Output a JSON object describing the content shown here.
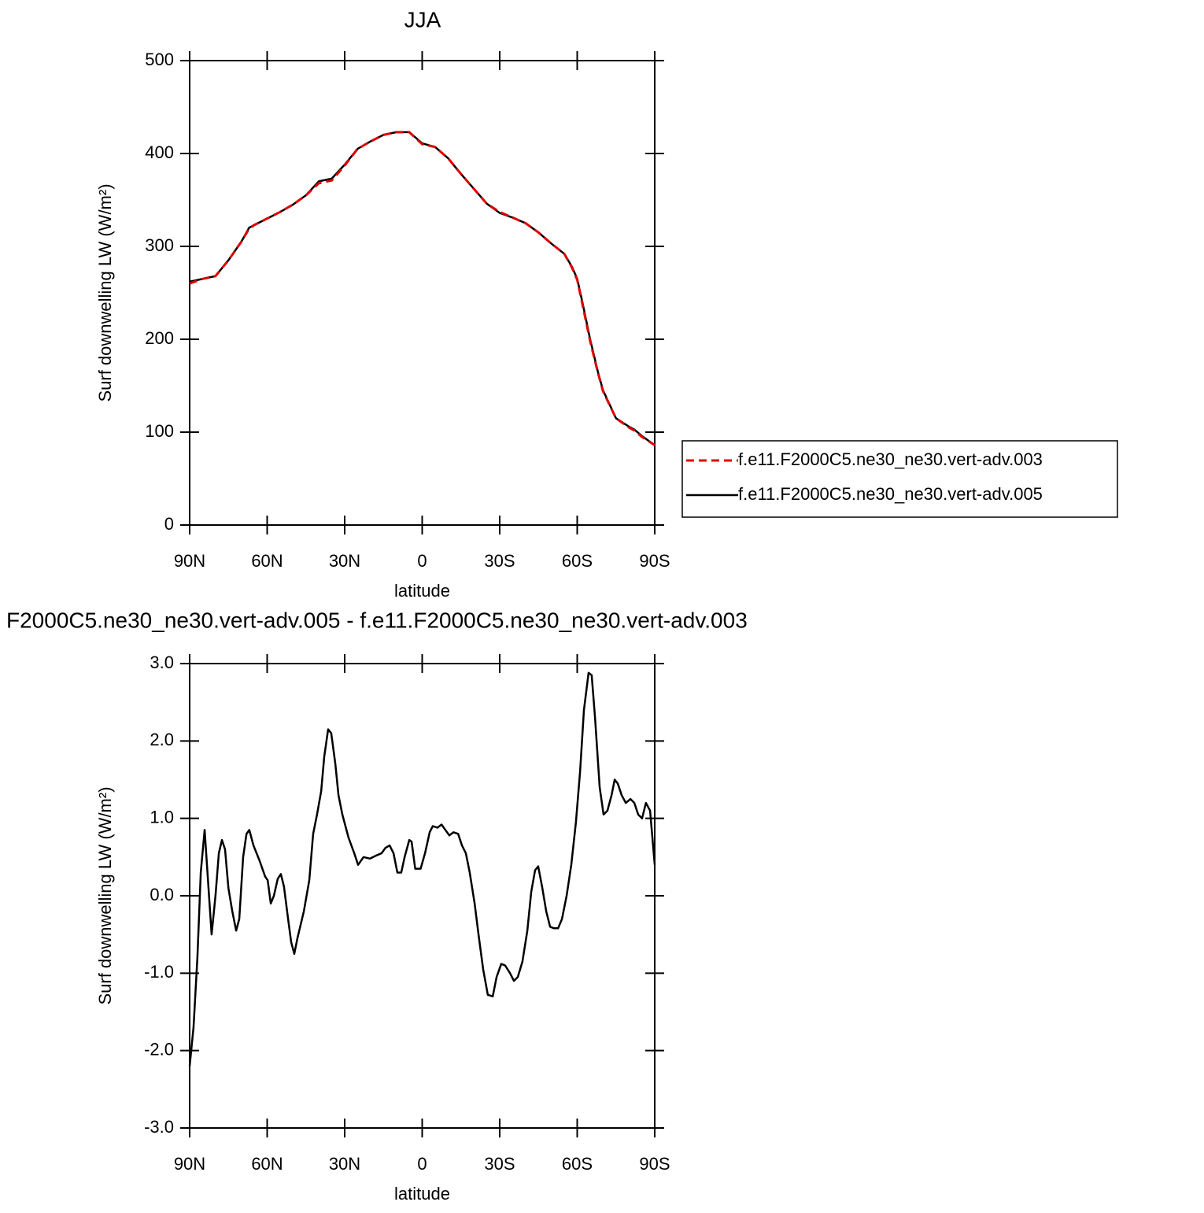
{
  "chart_data": [
    {
      "type": "line",
      "title": "JJA",
      "xlabel": "latitude",
      "ylabel": "Surf downwelling LW (W/m²)",
      "x": [
        90,
        85,
        80,
        75,
        70,
        67,
        65,
        60,
        55,
        50,
        45,
        40,
        35,
        30,
        25,
        20,
        15,
        10,
        5,
        0,
        -5,
        -10,
        -15,
        -20,
        -25,
        -30,
        -35,
        -40,
        -45,
        -50,
        -55,
        -58,
        -60,
        -62,
        -65,
        -68,
        -70,
        -75,
        -80,
        -82,
        -85,
        -90
      ],
      "series": [
        {
          "name": "f.e11.F2000C5.ne30_ne30.vert-adv.003",
          "color": "#e00000",
          "line_style": "dashed",
          "values": [
            260,
            265,
            268,
            285,
            305,
            319,
            323,
            330,
            337,
            345,
            355,
            368,
            371,
            387,
            405,
            413,
            420,
            423,
            423,
            410,
            407,
            395,
            378,
            362,
            346,
            337,
            331,
            325,
            315,
            303,
            292,
            277,
            264,
            238,
            198,
            164,
            144,
            115,
            105,
            102,
            95,
            86
          ]
        },
        {
          "name": "f.e11.F2000C5.ne30_ne30.vert-adv.005",
          "color": "#000000",
          "line_style": "solid",
          "values": [
            262,
            265,
            268,
            285,
            305,
            320,
            323,
            330,
            337,
            345,
            355,
            370,
            373,
            388,
            405,
            413,
            420,
            423,
            423,
            411,
            407,
            395,
            378,
            362,
            346,
            336,
            331,
            325,
            315,
            303,
            292,
            278,
            265,
            240,
            200,
            165,
            145,
            115,
            106,
            103,
            96,
            86
          ]
        }
      ],
      "xlim": [
        90,
        -90
      ],
      "xticks": [
        {
          "value": 90,
          "label": "90N"
        },
        {
          "value": 60,
          "label": "60N"
        },
        {
          "value": 30,
          "label": "30N"
        },
        0,
        {
          "value": -30,
          "label": "30S"
        },
        {
          "value": -60,
          "label": "60S"
        },
        {
          "value": -90,
          "label": "90S"
        }
      ],
      "ylim": [
        0,
        500
      ],
      "yticks": [
        0,
        100,
        200,
        300,
        400,
        500
      ],
      "legend": "right"
    },
    {
      "type": "line",
      "title": "F2000C5.ne30_ne30.vert-adv.005 - f.e11.F2000C5.ne30_ne30.vert-adv.003",
      "xlabel": "latitude",
      "ylabel": "Surf downwelling LW (W/m²)",
      "x": [
        90,
        88.5,
        87,
        85.7,
        84.2,
        82.7,
        81.5,
        80,
        78.7,
        77.5,
        76.3,
        75,
        73.5,
        72,
        70.8,
        69.3,
        68,
        66.9,
        65.3,
        62.9,
        60.8,
        59.8,
        58.6,
        57.4,
        55.9,
        54.7,
        53.5,
        51.9,
        50.7,
        49.5,
        48.3,
        45.8,
        43.7,
        42.2,
        40.7,
        39.1,
        37.9,
        36.4,
        35.2,
        33.6,
        32.4,
        30.9,
        28.5,
        26.3,
        24.8,
        22.7,
        20.2,
        17.8,
        15.7,
        14.2,
        12.6,
        11.1,
        9.6,
        8.1,
        6.8,
        5,
        4.1,
        2.7,
        0.6,
        -1.1,
        -2.9,
        -4.1,
        -5.9,
        -7.5,
        -9,
        -10.5,
        -12.1,
        -13.9,
        -15.4,
        -16.9,
        -18.4,
        -20.3,
        -21.8,
        -23.6,
        -25.4,
        -27.3,
        -28.8,
        -30.6,
        -32.1,
        -34,
        -35.5,
        -37,
        -38.8,
        -40.7,
        -42.2,
        -43.7,
        -44.9,
        -46.5,
        -48,
        -49.5,
        -51,
        -52.6,
        -54.1,
        -55.9,
        -57.7,
        -59.5,
        -61.1,
        -62.6,
        -64.4,
        -65.6,
        -66.9,
        -68.7,
        -70.2,
        -71.7,
        -73.3,
        -74.5,
        -75.7,
        -77.2,
        -78.8,
        -80.6,
        -82.1,
        -83.6,
        -85.1,
        -86.6,
        -88.2,
        -90
      ],
      "series": [
        {
          "color": "#000000",
          "line_style": "solid",
          "values": [
            -2.2,
            -1.7,
            -0.8,
            0.3,
            0.85,
            0.1,
            -0.5,
            0,
            0.55,
            0.72,
            0.6,
            0.1,
            -0.2,
            -0.45,
            -0.3,
            0.5,
            0.8,
            0.85,
            0.65,
            0.45,
            0.25,
            0.2,
            -0.1,
            0,
            0.22,
            0.28,
            0.12,
            -0.3,
            -0.6,
            -0.75,
            -0.55,
            -0.2,
            0.2,
            0.8,
            1.05,
            1.35,
            1.8,
            2.15,
            2.1,
            1.7,
            1.3,
            1.05,
            0.75,
            0.55,
            0.4,
            0.5,
            0.48,
            0.52,
            0.55,
            0.62,
            0.65,
            0.55,
            0.3,
            0.3,
            0.5,
            0.72,
            0.7,
            0.35,
            0.35,
            0.55,
            0.82,
            0.9,
            0.88,
            0.92,
            0.85,
            0.78,
            0.82,
            0.8,
            0.65,
            0.55,
            0.3,
            -0.1,
            -0.5,
            -0.95,
            -1.28,
            -1.3,
            -1.05,
            -0.88,
            -0.9,
            -1,
            -1.1,
            -1.05,
            -0.85,
            -0.45,
            0.05,
            0.33,
            0.38,
            0.1,
            -0.2,
            -0.4,
            -0.42,
            -0.42,
            -0.3,
            0,
            0.4,
            0.95,
            1.6,
            2.4,
            2.88,
            2.85,
            2.3,
            1.4,
            1.05,
            1.1,
            1.3,
            1.5,
            1.45,
            1.3,
            1.2,
            1.25,
            1.2,
            1.05,
            1,
            1.2,
            1.1,
            0.4
          ]
        }
      ],
      "xlim": [
        90,
        -90
      ],
      "xticks": [
        {
          "value": 90,
          "label": "90N"
        },
        {
          "value": 60,
          "label": "60N"
        },
        {
          "value": 30,
          "label": "30N"
        },
        0,
        {
          "value": -30,
          "label": "30S"
        },
        {
          "value": -60,
          "label": "60S"
        },
        {
          "value": -90,
          "label": "90S"
        }
      ],
      "ylim": [
        -3,
        3
      ],
      "yticks": [
        {
          "value": -3,
          "label": "-3.0"
        },
        {
          "value": -2,
          "label": "-2.0"
        },
        {
          "value": -1,
          "label": "-1.0"
        },
        {
          "value": 0,
          "label": "0.0"
        },
        {
          "value": 1,
          "label": "1.0"
        },
        {
          "value": 2,
          "label": "2.0"
        },
        {
          "value": 3,
          "label": "3.0"
        }
      ]
    }
  ]
}
